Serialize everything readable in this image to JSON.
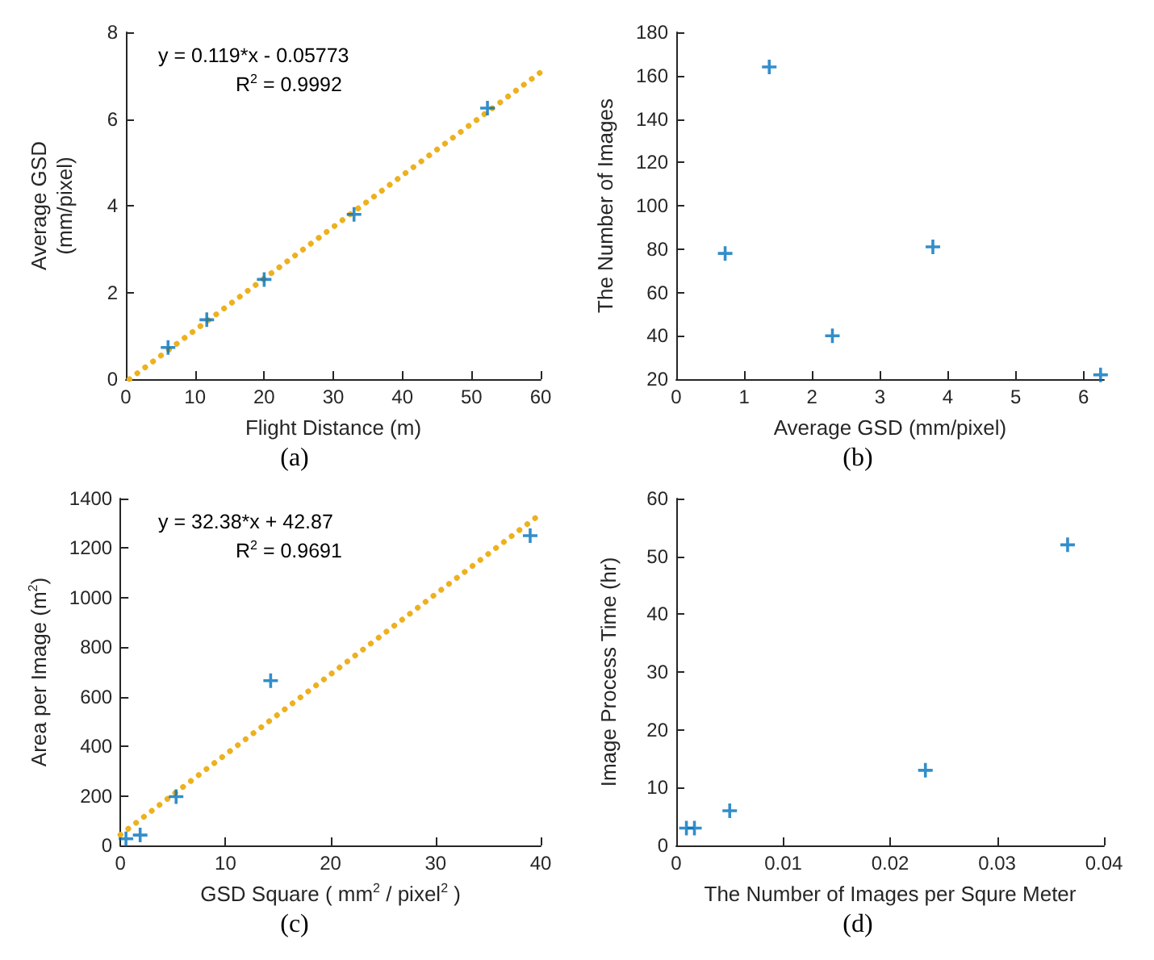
{
  "chart_data": [
    {
      "type": "scatter",
      "title": "(a)",
      "xlabel": "Flight Distance (m)",
      "ylabel": "Average GSD\n(mm/pixel)",
      "xlim": [
        0,
        60
      ],
      "xticks": [
        0,
        10,
        20,
        30,
        40,
        50,
        60
      ],
      "ylim": [
        0,
        8
      ],
      "yticks": [
        0,
        2,
        4,
        6,
        8
      ],
      "grid": false,
      "annotations": [
        "y = 0.119*x - 0.05773",
        "R$^{2}$ = 0.9992"
      ],
      "series": [
        {
          "type": "line",
          "color": "#edb120",
          "marker": "none",
          "line_style": "dotted",
          "x": [
            0.5,
            60
          ],
          "values": [
            0,
            7.08
          ]
        },
        {
          "color": "#0072bd",
          "marker": "cross",
          "x": [
            6.1,
            11.7,
            20,
            33,
            52.3
          ],
          "values": [
            0.73,
            1.37,
            2.3,
            3.8,
            6.25
          ]
        }
      ]
    },
    {
      "type": "scatter",
      "title": "(b)",
      "xlabel": "Average GSD (mm/pixel)",
      "ylabel": "The Number of Images",
      "xlim": [
        0,
        6.3
      ],
      "xticks": [
        0,
        1,
        2,
        3,
        4,
        5,
        6
      ],
      "ylim": [
        20,
        180
      ],
      "yticks": [
        20,
        40,
        60,
        80,
        100,
        120,
        140,
        160,
        180
      ],
      "grid": false,
      "series": [
        {
          "color": "#0072bd",
          "marker": "cross",
          "x": [
            0.72,
            1.37,
            2.3,
            3.78,
            6.25
          ],
          "values": [
            78,
            164,
            40,
            81,
            22
          ]
        }
      ]
    },
    {
      "type": "scatter",
      "title": "(c)",
      "xlabel": "GSD Square ( mm$^{2}$ / pixel$^{2}$ )",
      "ylabel": "Area per Image (m$^{2}$)",
      "xlim": [
        0,
        40
      ],
      "xticks": [
        0,
        10,
        20,
        30,
        40
      ],
      "ylim": [
        0,
        1400
      ],
      "yticks": [
        0,
        200,
        400,
        600,
        800,
        1000,
        1200,
        1400
      ],
      "grid": false,
      "annotations": [
        "y = 32.38*x + 42.87",
        "R$^{2}$ = 0.9691"
      ],
      "series": [
        {
          "type": "line",
          "color": "#edb120",
          "marker": "none",
          "line_style": "dotted",
          "x": [
            0,
            39.5
          ],
          "values": [
            43,
            1322
          ]
        },
        {
          "color": "#0072bd",
          "marker": "cross",
          "x": [
            0.53,
            1.88,
            5.3,
            14.3,
            39
          ],
          "values": [
            27,
            42,
            197,
            665,
            1250
          ]
        }
      ]
    },
    {
      "type": "scatter",
      "title": "(d)",
      "xlabel": "The Number of Images per Squre Meter",
      "ylabel": "Image Process Time (hr)",
      "xlim": [
        0,
        0.04
      ],
      "xticks": [
        0,
        0.01,
        0.02,
        0.03,
        0.04
      ],
      "ylim": [
        0,
        60
      ],
      "yticks": [
        0,
        10,
        20,
        30,
        40,
        50,
        60
      ],
      "grid": false,
      "series": [
        {
          "color": "#0072bd",
          "marker": "cross",
          "x": [
            0.00095,
            0.0017,
            0.005,
            0.0233,
            0.0366
          ],
          "values": [
            3,
            3,
            6,
            13,
            52
          ]
        }
      ]
    }
  ]
}
